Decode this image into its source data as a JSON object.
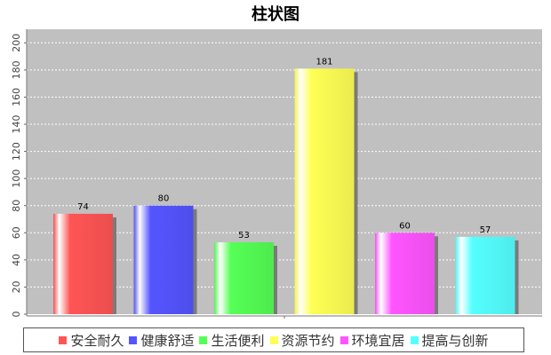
{
  "chart_data": {
    "type": "bar",
    "title": "柱状图",
    "xlabel": "",
    "ylabel": "",
    "categories": [
      "安全耐久",
      "健康舒适",
      "生活便利",
      "资源节约",
      "环境宜居",
      "提高与创新"
    ],
    "values": [
      74,
      80,
      53,
      181,
      60,
      57
    ],
    "colors": [
      "#ff5555",
      "#5555ff",
      "#55ff55",
      "#ffff55",
      "#ff55ff",
      "#55ffff"
    ],
    "ylim": [
      0,
      210
    ],
    "yticks": [
      0,
      20,
      40,
      60,
      80,
      100,
      120,
      140,
      160,
      180,
      200
    ],
    "grid": true,
    "legend_position": "bottom",
    "plot_background": "#c0c0c0"
  }
}
